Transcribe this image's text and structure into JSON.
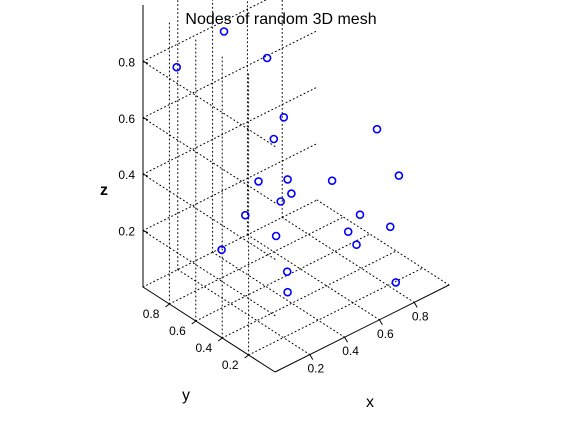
{
  "chart_data": {
    "type": "scatter",
    "title": "Nodes of random 3D mesh",
    "xlabel": "x",
    "ylabel": "y",
    "zlabel": "z",
    "x_ticks": [
      "0.2",
      "0.4",
      "0.6",
      "0.8"
    ],
    "y_ticks": [
      "0.2",
      "0.4",
      "0.6",
      "0.8"
    ],
    "z_ticks": [
      "0.2",
      "0.4",
      "0.6",
      "0.8"
    ],
    "grid": true,
    "marker": "circle",
    "marker_color": "#0000ff",
    "points": [
      {
        "x": 0.2,
        "y": 0.65,
        "z": 0.95
      },
      {
        "x": 0.22,
        "y": 0.35,
        "z": 0.94
      },
      {
        "x": 0.08,
        "y": 0.85,
        "z": 0.8
      },
      {
        "x": 0.7,
        "y": 0.15,
        "z": 0.6
      },
      {
        "x": 0.43,
        "y": 0.5,
        "z": 0.62
      },
      {
        "x": 0.3,
        "y": 0.3,
        "z": 0.5
      },
      {
        "x": 0.48,
        "y": 0.2,
        "z": 0.47
      },
      {
        "x": 0.75,
        "y": 0.05,
        "z": 0.45
      },
      {
        "x": 0.3,
        "y": 0.8,
        "z": 0.1
      },
      {
        "x": 0.17,
        "y": 0.1,
        "z": 0.55
      },
      {
        "x": 0.6,
        "y": 0.8,
        "z": 0.4
      },
      {
        "x": 0.12,
        "y": 0.15,
        "z": 0.4
      },
      {
        "x": 0.45,
        "y": 0.55,
        "z": 0.3
      },
      {
        "x": 0.64,
        "y": 0.2,
        "z": 0.3
      },
      {
        "x": 0.3,
        "y": 0.3,
        "z": 0.1
      },
      {
        "x": 0.8,
        "y": 0.5,
        "z": 0.1
      },
      {
        "x": 0.62,
        "y": 0.2,
        "z": 0.2
      },
      {
        "x": 0.89,
        "y": 0.3,
        "z": 0.15
      },
      {
        "x": 0.77,
        "y": 0.1,
        "z": 0.05
      },
      {
        "x": 0.55,
        "y": 0.95,
        "z": 0.1
      },
      {
        "x": 0.55,
        "y": 0.85,
        "z": 0.25
      },
      {
        "x": 0.26,
        "y": 0.25,
        "z": 0.2
      }
    ]
  }
}
